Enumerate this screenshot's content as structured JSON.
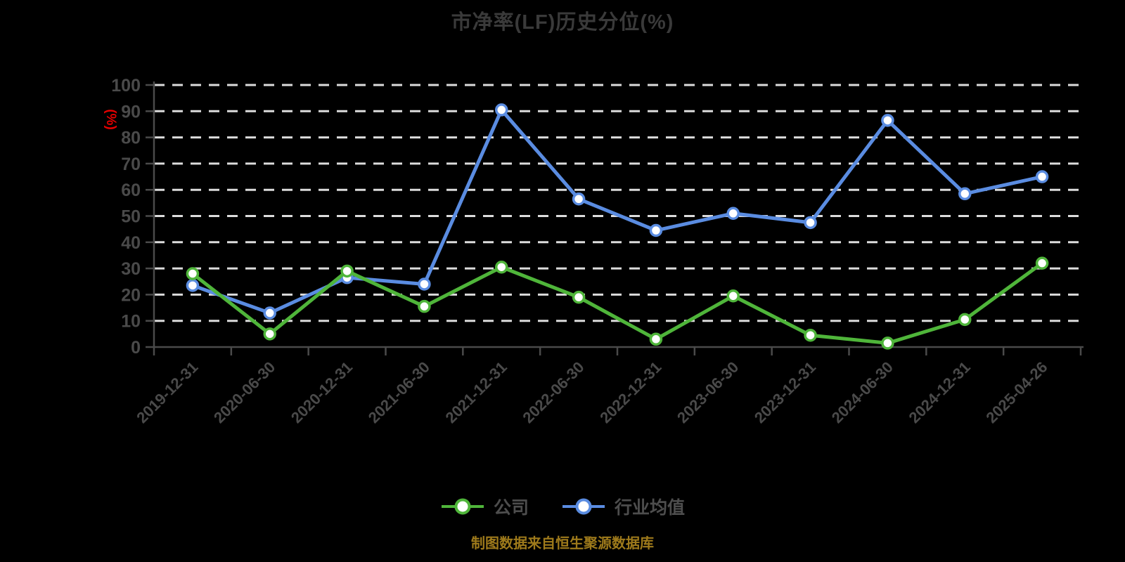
{
  "title": "市净率(LF)历史分位(%)",
  "footer": "制图数据来自恒生聚源数据库",
  "colors": {
    "background": "#000000",
    "title": "#3a3a3a",
    "axis": "#4a4a4a",
    "tick_label": "#4a4a4a",
    "grid": "#dcdcdc",
    "y_unit_label": "#e60000",
    "legend_text": "#4d4d4d",
    "footer_text": "#9e7a1b",
    "marker_fill": "#ffffff",
    "company_green": "#4fb53a",
    "industry_blue": "#5a8ce1"
  },
  "chart_data": {
    "type": "line",
    "title": "市净率(LF)历史分位(%)",
    "ylabel": "(%)",
    "ylim": [
      0,
      100
    ],
    "y_ticks": [
      0,
      10,
      20,
      30,
      40,
      50,
      60,
      70,
      80,
      90,
      100
    ],
    "grid": "horizontal dashed white lines, black background",
    "legend_position": "bottom center",
    "categories": [
      "2019-12-31",
      "2020-06-30",
      "2020-12-31",
      "2021-06-30",
      "2021-12-31",
      "2022-06-30",
      "2022-12-31",
      "2023-06-30",
      "2023-12-31",
      "2024-06-30",
      "2024-12-31",
      "2025-04-26"
    ],
    "series": [
      {
        "name": "公司",
        "color": "#4fb53a",
        "values": [
          28,
          5,
          29,
          15.5,
          30.5,
          19,
          3,
          19.5,
          4.5,
          1.5,
          10.5,
          32
        ]
      },
      {
        "name": "行业均值",
        "color": "#5a8ce1",
        "values": [
          23.5,
          13,
          26.5,
          24,
          90.5,
          56.5,
          44.5,
          51,
          47.5,
          86.5,
          58.5,
          65
        ]
      }
    ]
  }
}
